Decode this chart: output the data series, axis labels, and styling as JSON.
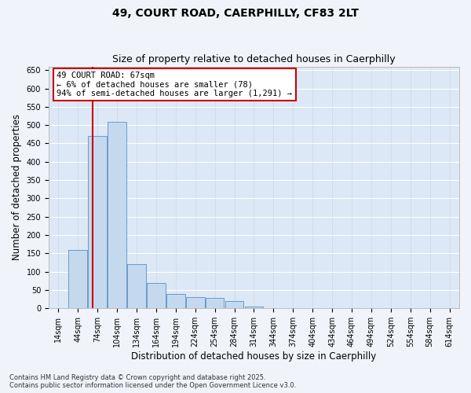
{
  "title_line1": "49, COURT ROAD, CAERPHILLY, CF83 2LT",
  "title_line2": "Size of property relative to detached houses in Caerphilly",
  "xlabel": "Distribution of detached houses by size in Caerphilly",
  "ylabel": "Number of detached properties",
  "bar_color": "#c5d9ee",
  "bar_edge_color": "#5a8fc0",
  "categories": [
    "14sqm",
    "44sqm",
    "74sqm",
    "104sqm",
    "134sqm",
    "164sqm",
    "194sqm",
    "224sqm",
    "254sqm",
    "284sqm",
    "314sqm",
    "344sqm",
    "374sqm",
    "404sqm",
    "434sqm",
    "464sqm",
    "494sqm",
    "524sqm",
    "554sqm",
    "584sqm",
    "614sqm"
  ],
  "values": [
    1,
    160,
    470,
    510,
    120,
    70,
    40,
    30,
    28,
    20,
    4,
    0,
    1,
    0,
    0,
    0,
    0,
    0,
    0,
    0,
    1
  ],
  "ylim": [
    0,
    660
  ],
  "yticks": [
    0,
    50,
    100,
    150,
    200,
    250,
    300,
    350,
    400,
    450,
    500,
    550,
    600,
    650
  ],
  "annotation_text": "49 COURT ROAD: 67sqm\n← 6% of detached houses are smaller (78)\n94% of semi-detached houses are larger (1,291) →",
  "annotation_box_color": "#ffffff",
  "annotation_box_edge": "#cc0000",
  "vline_color": "#cc0000",
  "plot_bg_color": "#dce8f5",
  "fig_bg_color": "#f0f4fa",
  "footnote": "Contains HM Land Registry data © Crown copyright and database right 2025.\nContains public sector information licensed under the Open Government Licence v3.0.",
  "title_fontsize": 10,
  "subtitle_fontsize": 9,
  "tick_fontsize": 7,
  "label_fontsize": 8.5,
  "annotation_fontsize": 7.5
}
